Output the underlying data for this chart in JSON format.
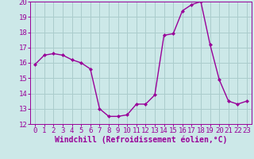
{
  "x": [
    0,
    1,
    2,
    3,
    4,
    5,
    6,
    7,
    8,
    9,
    10,
    11,
    12,
    13,
    14,
    15,
    16,
    17,
    18,
    19,
    20,
    21,
    22,
    23
  ],
  "y": [
    15.9,
    16.5,
    16.6,
    16.5,
    16.2,
    16.0,
    15.6,
    13.0,
    12.5,
    12.5,
    12.6,
    13.3,
    13.3,
    13.9,
    17.8,
    17.9,
    19.4,
    19.8,
    20.0,
    17.2,
    14.9,
    13.5,
    13.3,
    13.5
  ],
  "line_color": "#990099",
  "marker": "D",
  "marker_size": 2.0,
  "bg_color": "#cce8e8",
  "grid_color": "#aacccc",
  "xlabel": "Windchill (Refroidissement éolien,°C)",
  "ylim": [
    12,
    20
  ],
  "xlim": [
    -0.5,
    23.5
  ],
  "yticks": [
    12,
    13,
    14,
    15,
    16,
    17,
    18,
    19,
    20
  ],
  "xticks": [
    0,
    1,
    2,
    3,
    4,
    5,
    6,
    7,
    8,
    9,
    10,
    11,
    12,
    13,
    14,
    15,
    16,
    17,
    18,
    19,
    20,
    21,
    22,
    23
  ],
  "label_color": "#990099",
  "tick_color": "#990099",
  "spine_color": "#990099",
  "font_size_axis": 6.5,
  "font_size_label": 7,
  "line_width": 1.0
}
